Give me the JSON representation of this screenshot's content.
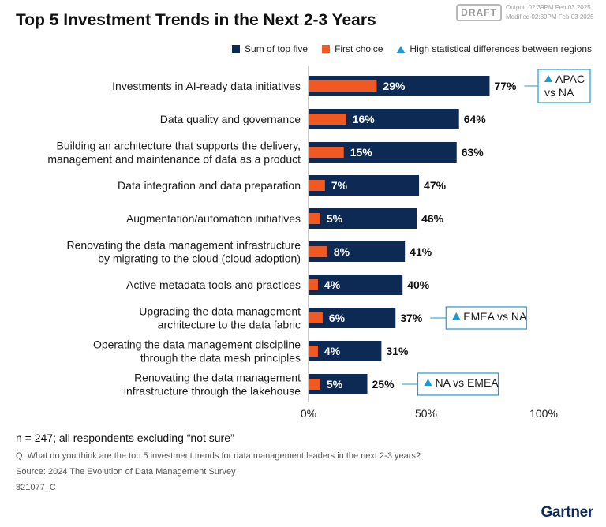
{
  "header": {
    "title": "Top 5 Investment Trends in the Next 2-3 Years",
    "draft_label": "DRAFT",
    "output_stamp": "Output: 02:39PM Feb 03 2025",
    "modified_stamp": "Modified 02:39PM Feb 03 2025"
  },
  "legend": {
    "sum_label": "Sum of top five",
    "first_label": "First choice",
    "diff_label": "High statistical differences between regions"
  },
  "colors": {
    "sum": "#0d2a54",
    "first": "#f05a22",
    "annotation": "#1e9ad6"
  },
  "chart_data": {
    "type": "bar",
    "orientation": "horizontal",
    "categories": [
      [
        "Investments in AI-ready data initiatives"
      ],
      [
        "Data quality and governance"
      ],
      [
        "Building an architecture that supports the delivery,",
        "management and maintenance of data as a product"
      ],
      [
        "Data integration and data preparation"
      ],
      [
        "Augmentation/automation initiatives"
      ],
      [
        "Renovating the data management infrastructure",
        "by migrating to the cloud (cloud adoption)"
      ],
      [
        "Active metadata tools and practices"
      ],
      [
        "Upgrading the data management",
        "architecture to the data fabric"
      ],
      [
        "Operating the data management discipline",
        "through the data mesh principles"
      ],
      [
        "Renovating the data management",
        "infrastructure through the lakehouse"
      ]
    ],
    "series": [
      {
        "name": "Sum of top five",
        "values": [
          77,
          64,
          63,
          47,
          46,
          41,
          40,
          37,
          31,
          25
        ]
      },
      {
        "name": "First choice",
        "values": [
          29,
          16,
          15,
          7,
          5,
          8,
          4,
          6,
          4,
          5
        ]
      }
    ],
    "value_suffix": "%",
    "xlim": [
      0,
      100
    ],
    "xticks": [
      "0%",
      "50%",
      "100%"
    ],
    "grid": false,
    "legend_position": "top-right",
    "annotations": [
      {
        "row": 0,
        "lines": [
          "APAC",
          "vs NA"
        ]
      },
      {
        "row": 7,
        "lines": [
          "EMEA vs NA"
        ]
      },
      {
        "row": 9,
        "lines": [
          "NA vs EMEA"
        ]
      }
    ]
  },
  "footer": {
    "n_note": "n = 247; all respondents excluding “not sure”",
    "question": "Q: What do you think are the top 5 investment trends for data management leaders in the next 2-3 years?",
    "source": "Source: 2024 The Evolution of Data Management Survey",
    "id": "821077_C",
    "brand": "Gartner"
  }
}
